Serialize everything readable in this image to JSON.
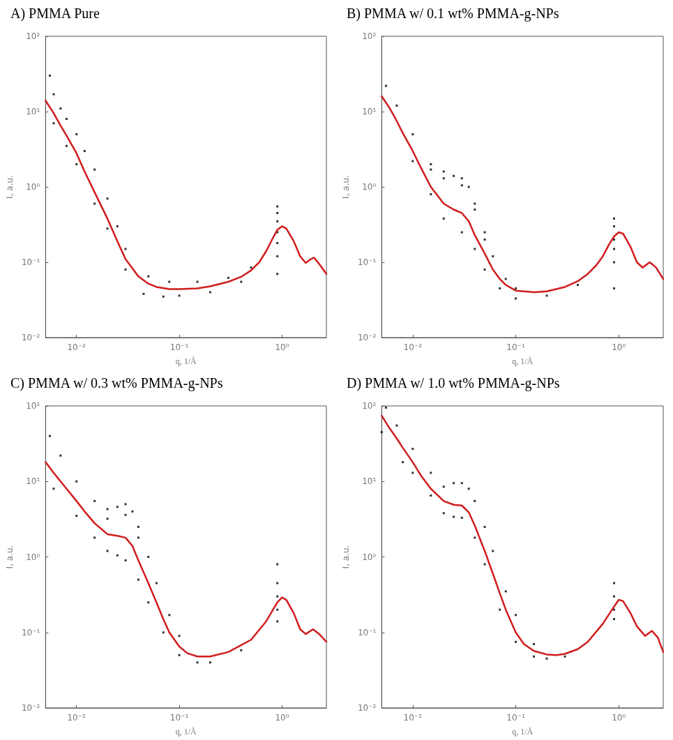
{
  "chart_data": [
    {
      "type": "scatter",
      "title": "A) PMMA Pure",
      "xlabel": "q, 1/Å",
      "ylabel": "I, a.u.",
      "log": "xy",
      "xlim": [
        0.005,
        2.7
      ],
      "ylim": [
        0.01,
        100
      ],
      "xticks": [
        {
          "value": 0.01,
          "label": "10⁻²"
        },
        {
          "value": 0.1,
          "label": "10⁻¹"
        },
        {
          "value": 1,
          "label": "10⁰"
        }
      ],
      "yticks": [
        {
          "value": 0.01,
          "label": "10⁻²"
        },
        {
          "value": 0.1,
          "label": "10⁻¹"
        },
        {
          "value": 1,
          "label": "10⁰"
        },
        {
          "value": 10,
          "label": "10¹"
        },
        {
          "value": 100,
          "label": "10²"
        }
      ],
      "series": [
        {
          "marker": "square",
          "color": "#000000",
          "x": [
            0.0055,
            0.006,
            0.007,
            0.008,
            0.01,
            0.012,
            0.015,
            0.02,
            0.025,
            0.03,
            0.05,
            0.08,
            0.15,
            0.3,
            0.5,
            0.006,
            0.008,
            0.01,
            0.015,
            0.02,
            0.03,
            0.045,
            0.07,
            0.1,
            0.2,
            0.4,
            0.9,
            0.9,
            0.9,
            0.9,
            0.9,
            0.9,
            0.9
          ],
          "values": [
            30,
            17,
            11,
            8,
            5,
            3,
            1.7,
            0.7,
            0.3,
            0.15,
            0.065,
            0.055,
            0.055,
            0.062,
            0.085,
            7,
            3.5,
            2,
            0.6,
            0.28,
            0.08,
            0.038,
            0.035,
            0.036,
            0.04,
            0.055,
            0.07,
            0.12,
            0.18,
            0.25,
            0.35,
            0.45,
            0.55
          ]
        },
        {
          "type": "line",
          "color": "#d01c1c",
          "x": [
            0.005,
            0.006,
            0.007,
            0.008,
            0.01,
            0.012,
            0.015,
            0.02,
            0.025,
            0.03,
            0.04,
            0.05,
            0.06,
            0.08,
            0.1,
            0.15,
            0.2,
            0.3,
            0.4,
            0.5,
            0.6,
            0.7,
            0.8,
            0.9,
            1.0,
            1.1,
            1.3,
            1.5,
            1.7,
            1.9,
            2.05,
            2.3,
            2.7
          ],
          "values": [
            14,
            9.5,
            6.5,
            4.8,
            2.8,
            1.6,
            0.85,
            0.38,
            0.19,
            0.11,
            0.065,
            0.052,
            0.047,
            0.044,
            0.044,
            0.045,
            0.048,
            0.055,
            0.064,
            0.078,
            0.1,
            0.14,
            0.2,
            0.27,
            0.3,
            0.28,
            0.19,
            0.12,
            0.098,
            0.11,
            0.115,
            0.095,
            0.07
          ]
        }
      ]
    },
    {
      "type": "scatter",
      "title": "B) PMMA w/ 0.1 wt% PMMA-g-NPs",
      "xlabel": "q, 1/Å",
      "ylabel": "I, a.u.",
      "log": "xy",
      "xlim": [
        0.005,
        2.7
      ],
      "ylim": [
        0.01,
        100
      ],
      "xticks": [
        {
          "value": 0.01,
          "label": "10⁻²"
        },
        {
          "value": 0.1,
          "label": "10⁻¹"
        },
        {
          "value": 1,
          "label": "10⁰"
        }
      ],
      "yticks": [
        {
          "value": 0.01,
          "label": "10⁻²"
        },
        {
          "value": 0.1,
          "label": "10⁻¹"
        },
        {
          "value": 1,
          "label": "10⁰"
        },
        {
          "value": 10,
          "label": "10¹"
        },
        {
          "value": 100,
          "label": "10²"
        }
      ],
      "series": [
        {
          "marker": "square",
          "color": "#000000",
          "x": [
            0.0055,
            0.007,
            0.01,
            0.015,
            0.02,
            0.025,
            0.03,
            0.035,
            0.04,
            0.05,
            0.06,
            0.08,
            0.1,
            0.015,
            0.02,
            0.03,
            0.04,
            0.05,
            0.01,
            0.015,
            0.02,
            0.03,
            0.04,
            0.05,
            0.07,
            0.1,
            0.2,
            0.4,
            0.9,
            0.9,
            0.9,
            0.9,
            0.9,
            0.9
          ],
          "values": [
            22,
            12,
            5,
            2,
            1.6,
            1.4,
            1.3,
            1.0,
            0.6,
            0.25,
            0.12,
            0.06,
            0.045,
            1.7,
            1.3,
            1.05,
            0.5,
            0.2,
            2.2,
            0.8,
            0.38,
            0.25,
            0.15,
            0.08,
            0.045,
            0.033,
            0.036,
            0.05,
            0.045,
            0.1,
            0.15,
            0.2,
            0.3,
            0.38
          ]
        },
        {
          "type": "line",
          "color": "#d01c1c",
          "x": [
            0.005,
            0.006,
            0.007,
            0.008,
            0.01,
            0.012,
            0.015,
            0.02,
            0.025,
            0.03,
            0.035,
            0.04,
            0.05,
            0.06,
            0.07,
            0.08,
            0.1,
            0.15,
            0.2,
            0.3,
            0.4,
            0.5,
            0.6,
            0.7,
            0.8,
            0.9,
            1.0,
            1.1,
            1.3,
            1.5,
            1.7,
            2.0,
            2.3,
            2.7
          ],
          "values": [
            16,
            11,
            7.5,
            5.2,
            3,
            1.8,
            1.0,
            0.6,
            0.5,
            0.45,
            0.35,
            0.23,
            0.13,
            0.08,
            0.06,
            0.05,
            0.042,
            0.04,
            0.041,
            0.047,
            0.056,
            0.07,
            0.09,
            0.12,
            0.17,
            0.22,
            0.25,
            0.24,
            0.16,
            0.1,
            0.085,
            0.1,
            0.085,
            0.06
          ]
        }
      ]
    },
    {
      "type": "scatter",
      "title": "C) PMMA w/ 0.3 wt% PMMA-g-NPs",
      "xlabel": "q, 1/Å",
      "ylabel": "I, a.u.",
      "log": "xy",
      "xlim": [
        0.005,
        2.7
      ],
      "ylim": [
        0.01,
        100
      ],
      "xticks": [
        {
          "value": 0.01,
          "label": "10⁻²"
        },
        {
          "value": 0.1,
          "label": "10⁻¹"
        },
        {
          "value": 1,
          "label": "10⁰"
        }
      ],
      "yticks": [
        {
          "value": 0.01,
          "label": "10⁻²"
        },
        {
          "value": 0.1,
          "label": "10⁻¹"
        },
        {
          "value": 1,
          "label": "10⁰"
        },
        {
          "value": 10,
          "label": "10¹"
        },
        {
          "value": 100,
          "label": "10²"
        }
      ],
      "series": [
        {
          "marker": "square",
          "color": "#000000",
          "x": [
            0.0055,
            0.007,
            0.01,
            0.015,
            0.02,
            0.025,
            0.03,
            0.035,
            0.04,
            0.05,
            0.06,
            0.08,
            0.1,
            0.02,
            0.03,
            0.04,
            0.006,
            0.01,
            0.015,
            0.02,
            0.025,
            0.03,
            0.04,
            0.05,
            0.07,
            0.1,
            0.15,
            0.2,
            0.4,
            0.9,
            0.9,
            0.9,
            0.9,
            0.9
          ],
          "values": [
            40,
            22,
            10,
            5.5,
            4.3,
            4.6,
            5,
            4,
            2.5,
            1,
            0.45,
            0.17,
            0.09,
            3.2,
            3.6,
            1.8,
            8,
            3.5,
            1.8,
            1.2,
            1.05,
            0.9,
            0.5,
            0.25,
            0.1,
            0.05,
            0.04,
            0.04,
            0.058,
            0.14,
            0.2,
            0.3,
            0.45,
            0.8
          ]
        },
        {
          "type": "line",
          "color": "#d01c1c",
          "x": [
            0.005,
            0.006,
            0.008,
            0.01,
            0.012,
            0.015,
            0.02,
            0.025,
            0.03,
            0.035,
            0.04,
            0.05,
            0.06,
            0.07,
            0.08,
            0.1,
            0.12,
            0.15,
            0.2,
            0.3,
            0.5,
            0.7,
            0.9,
            1.0,
            1.1,
            1.3,
            1.5,
            1.7,
            2.0,
            2.3,
            2.7
          ],
          "values": [
            18,
            13,
            8,
            5.5,
            4,
            2.8,
            2.0,
            1.9,
            1.8,
            1.4,
            0.9,
            0.45,
            0.25,
            0.15,
            0.1,
            0.065,
            0.053,
            0.048,
            0.048,
            0.055,
            0.08,
            0.14,
            0.25,
            0.29,
            0.27,
            0.18,
            0.11,
            0.095,
            0.11,
            0.095,
            0.075
          ]
        }
      ]
    },
    {
      "type": "scatter",
      "title": "D) PMMA w/ 1.0 wt% PMMA-g-NPs",
      "xlabel": "q, 1/Å",
      "ylabel": "I, a.u.",
      "log": "xy",
      "xlim": [
        0.005,
        2.7
      ],
      "ylim": [
        0.01,
        100
      ],
      "xticks": [
        {
          "value": 0.01,
          "label": "10⁻²"
        },
        {
          "value": 0.1,
          "label": "10⁻¹"
        },
        {
          "value": 1,
          "label": "10⁰"
        }
      ],
      "yticks": [
        {
          "value": 0.01,
          "label": "10⁻²"
        },
        {
          "value": 0.1,
          "label": "10⁻¹"
        },
        {
          "value": 1,
          "label": "10⁰"
        },
        {
          "value": 10,
          "label": "10¹"
        },
        {
          "value": 100,
          "label": "10²"
        }
      ],
      "series": [
        {
          "marker": "square",
          "color": "#000000",
          "x": [
            0.0055,
            0.007,
            0.01,
            0.015,
            0.02,
            0.025,
            0.03,
            0.035,
            0.04,
            0.05,
            0.06,
            0.08,
            0.1,
            0.15,
            0.005,
            0.008,
            0.01,
            0.015,
            0.02,
            0.025,
            0.03,
            0.04,
            0.05,
            0.07,
            0.1,
            0.15,
            0.2,
            0.3,
            0.9,
            0.9,
            0.9,
            0.9
          ],
          "values": [
            95,
            55,
            27,
            13,
            8.5,
            9.5,
            9.5,
            8,
            5.5,
            2.5,
            1.2,
            0.35,
            0.17,
            0.07,
            45,
            18,
            13,
            6.5,
            3.8,
            3.4,
            3.3,
            1.8,
            0.8,
            0.2,
            0.075,
            0.048,
            0.045,
            0.048,
            0.15,
            0.2,
            0.3,
            0.45
          ]
        },
        {
          "type": "line",
          "color": "#d01c1c",
          "x": [
            0.005,
            0.006,
            0.007,
            0.008,
            0.01,
            0.012,
            0.015,
            0.02,
            0.025,
            0.03,
            0.035,
            0.04,
            0.05,
            0.06,
            0.07,
            0.08,
            0.1,
            0.12,
            0.15,
            0.2,
            0.25,
            0.3,
            0.4,
            0.5,
            0.7,
            0.9,
            1.0,
            1.1,
            1.3,
            1.5,
            1.8,
            2.1,
            2.4,
            2.7
          ],
          "values": [
            74,
            50,
            37,
            28,
            18,
            12,
            8,
            5.5,
            4.9,
            4.8,
            3.9,
            2.6,
            1.2,
            0.6,
            0.33,
            0.2,
            0.1,
            0.07,
            0.057,
            0.051,
            0.05,
            0.052,
            0.06,
            0.075,
            0.13,
            0.22,
            0.27,
            0.26,
            0.18,
            0.12,
            0.09,
            0.105,
            0.085,
            0.055
          ]
        }
      ]
    }
  ]
}
